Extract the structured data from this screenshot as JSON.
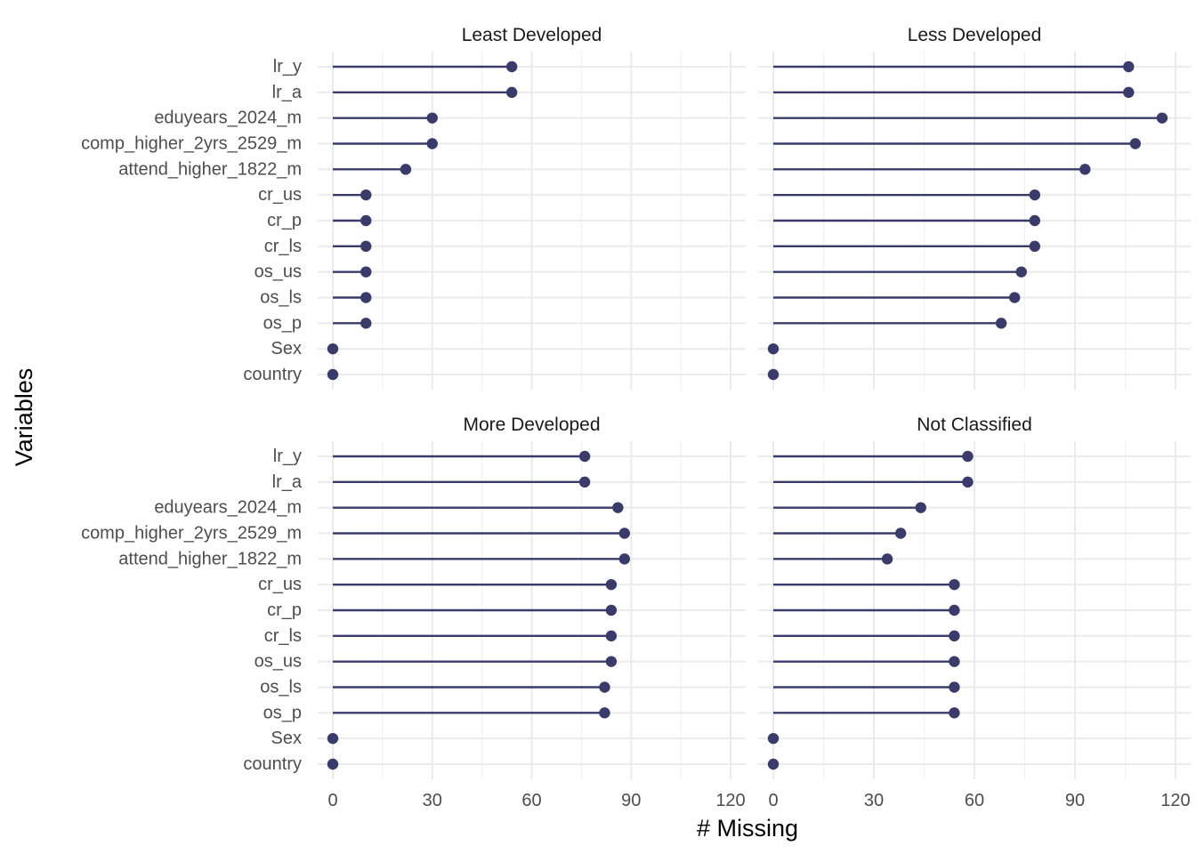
{
  "chart_data": {
    "type": "lollipop",
    "xlabel": "# Missing",
    "ylabel": "Variables",
    "xlim": [
      0,
      120
    ],
    "xticks": [
      0,
      30,
      60,
      90,
      120
    ],
    "grid": true,
    "color": "#3b3b6b",
    "variables": [
      "lr_y",
      "lr_a",
      "eduyears_2024_m",
      "comp_higher_2yrs_2529_m",
      "attend_higher_1822_m",
      "cr_us",
      "cr_p",
      "cr_ls",
      "os_us",
      "os_ls",
      "os_p",
      "Sex",
      "country"
    ],
    "facets": [
      {
        "title": "Least Developed",
        "values": [
          54,
          54,
          30,
          30,
          22,
          10,
          10,
          10,
          10,
          10,
          10,
          0,
          0
        ]
      },
      {
        "title": "Less Developed",
        "values": [
          106,
          106,
          116,
          108,
          93,
          78,
          78,
          78,
          74,
          72,
          68,
          0,
          0
        ]
      },
      {
        "title": "More Developed",
        "values": [
          76,
          76,
          86,
          88,
          88,
          84,
          84,
          84,
          84,
          82,
          82,
          0,
          0
        ]
      },
      {
        "title": "Not Classified",
        "values": [
          58,
          58,
          44,
          38,
          34,
          54,
          54,
          54,
          54,
          54,
          54,
          0,
          0
        ]
      }
    ]
  }
}
